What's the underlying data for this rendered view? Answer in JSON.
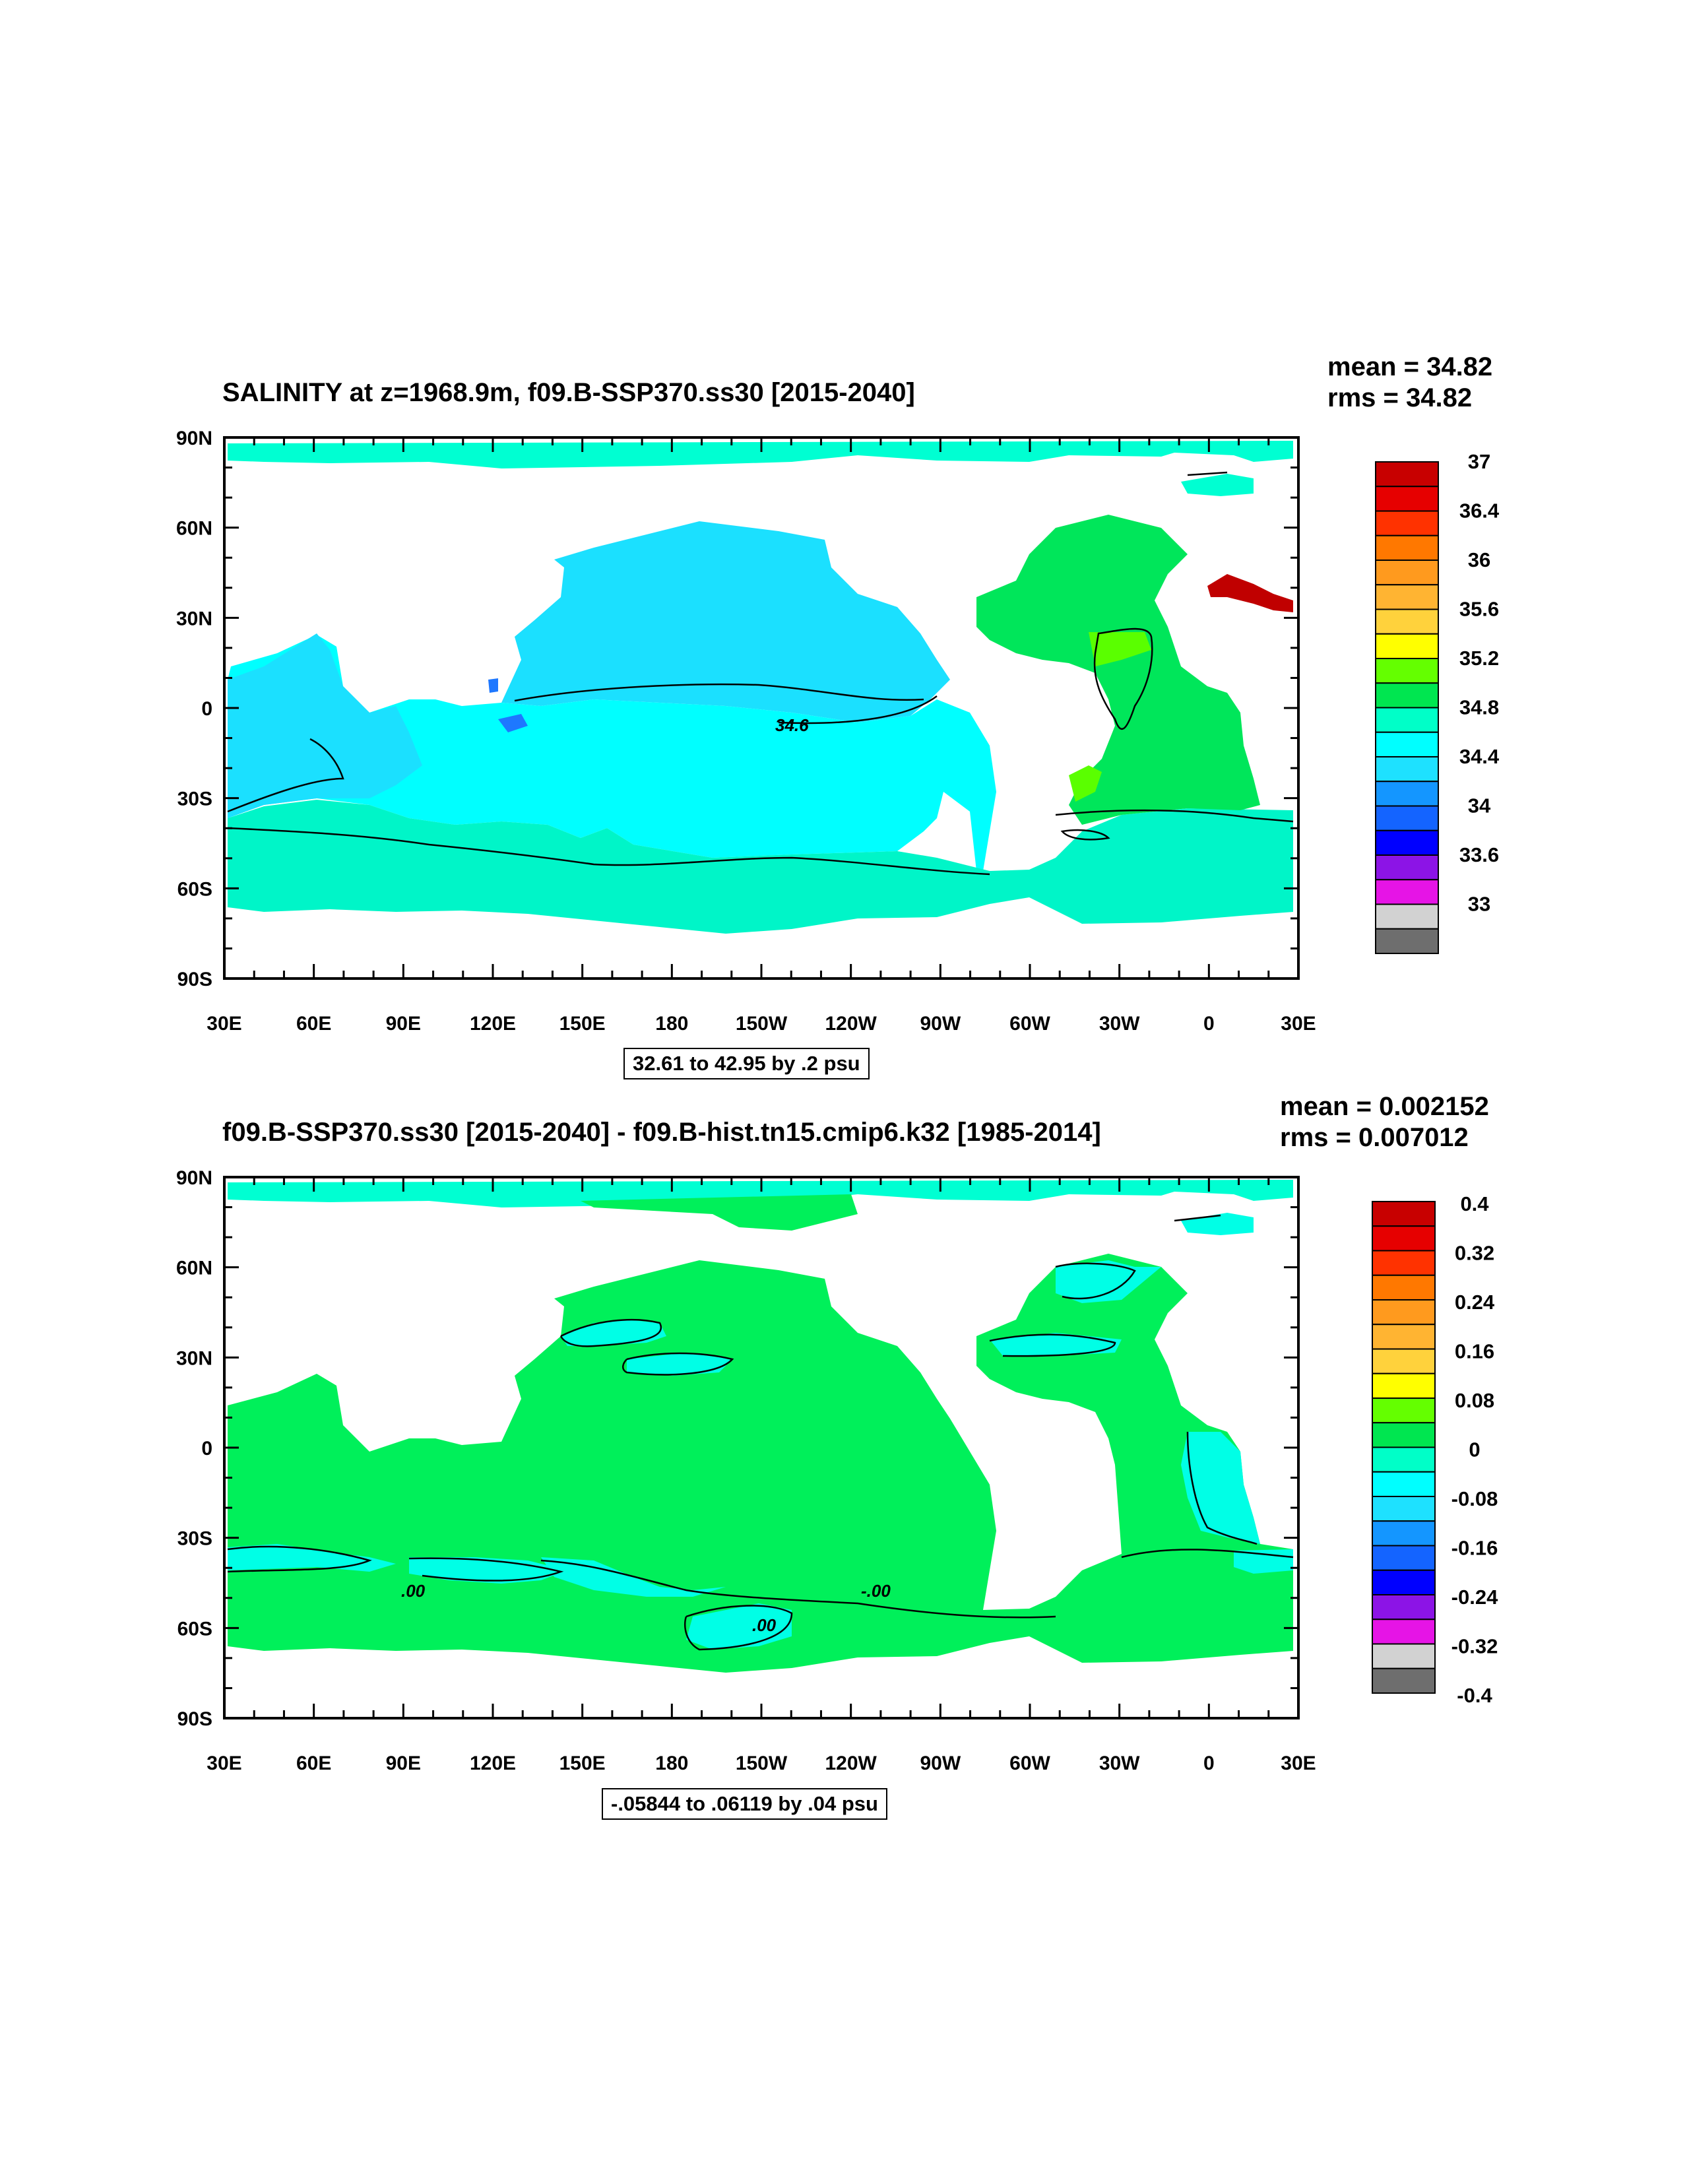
{
  "panels": [
    {
      "title": "SALINITY at z=1968.9m, f09.B-SSP370.ss30 [2015-2040]",
      "mean_text": "mean = 34.82",
      "rms_text": "rms = 34.82",
      "range_text": "32.61 to 42.95 by .2 psu",
      "lat_labels": [
        "90N",
        "60N",
        "30N",
        "0",
        "30S",
        "60S",
        "90S"
      ],
      "lon_labels": [
        "30E",
        "60E",
        "90E",
        "120E",
        "150E",
        "180",
        "150W",
        "120W",
        "90W",
        "60W",
        "30W",
        "0",
        "30E"
      ],
      "colorbar_labels": [
        "37",
        "36.4",
        "36",
        "35.6",
        "35.2",
        "34.8",
        "34.4",
        "34",
        "33.6",
        "33"
      ],
      "contour_labels": [
        "34.6"
      ],
      "dominant_colors": {
        "atlantic": "#00e65a",
        "pacific_north": "#1be0ff",
        "pacific_south": "#00ffff",
        "southern": "#00f5c8",
        "mediterranean": "#c80000"
      }
    },
    {
      "title": "f09.B-SSP370.ss30 [2015-2040] - f09.B-hist.tn15.cmip6.k32 [1985-2014]",
      "mean_text": "mean = 0.002152",
      "rms_text": "rms = 0.007012",
      "range_text": "-.05844 to .06119 by .04 psu",
      "lat_labels": [
        "90N",
        "60N",
        "30N",
        "0",
        "30S",
        "60S",
        "90S"
      ],
      "lon_labels": [
        "30E",
        "60E",
        "90E",
        "120E",
        "150E",
        "180",
        "150W",
        "120W",
        "90W",
        "60W",
        "30W",
        "0",
        "30E"
      ],
      "colorbar_labels": [
        "0.4",
        "0.32",
        "0.24",
        "0.16",
        "0.08",
        "0",
        "-0.08",
        "-0.16",
        "-0.24",
        "-0.32",
        "-0.4"
      ],
      "contour_labels": [
        ".00",
        "-.00",
        ".00"
      ],
      "dominant_colors": {
        "ocean": "#00f05a",
        "anomaly_low": "#00ffe6"
      }
    }
  ],
  "colorbar_colors": [
    "#c80000",
    "#e60000",
    "#ff3200",
    "#ff7800",
    "#ff9a1e",
    "#ffb432",
    "#ffd23c",
    "#ffff00",
    "#64ff00",
    "#00e650",
    "#00ffc8",
    "#00ffff",
    "#1ee1ff",
    "#1496ff",
    "#1464ff",
    "#0000ff",
    "#8c14e6",
    "#e614e6",
    "#d2d2d2",
    "#6e6e6e"
  ]
}
